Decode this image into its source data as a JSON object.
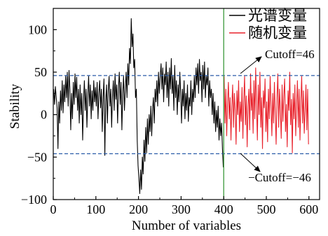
{
  "chart_data": {
    "type": "line",
    "xlabel": "Number of variables",
    "ylabel": "Stability",
    "xlim": [
      0,
      625
    ],
    "ylim": [
      -100,
      125
    ],
    "xticks": [
      0,
      100,
      200,
      300,
      400,
      500,
      600
    ],
    "xtick_labels": [
      "0",
      "100",
      "200",
      "300",
      "400",
      "500",
      "600"
    ],
    "yticks": [
      -100,
      -50,
      0,
      50,
      100
    ],
    "ytick_labels": [
      "−100",
      "−50",
      "0",
      "50",
      "100"
    ],
    "grid": false,
    "legend": "top-right",
    "series": [
      {
        "name": "光谱变量",
        "color": "#000000",
        "x": [
          1,
          3,
          5,
          7,
          9,
          11,
          13,
          15,
          17,
          19,
          21,
          23,
          25,
          27,
          29,
          31,
          33,
          35,
          37,
          39,
          41,
          43,
          45,
          47,
          49,
          51,
          53,
          55,
          57,
          59,
          61,
          63,
          65,
          67,
          69,
          71,
          73,
          75,
          77,
          79,
          81,
          83,
          85,
          87,
          89,
          91,
          93,
          95,
          97,
          99,
          101,
          103,
          105,
          107,
          109,
          111,
          113,
          115,
          117,
          119,
          121,
          123,
          125,
          127,
          129,
          131,
          133,
          135,
          137,
          139,
          141,
          143,
          145,
          147,
          149,
          151,
          153,
          155,
          157,
          159,
          161,
          163,
          165,
          167,
          169,
          171,
          173,
          175,
          177,
          179,
          181,
          183,
          185,
          187,
          189,
          191,
          193,
          195,
          197,
          199,
          201,
          203,
          205,
          207,
          209,
          211,
          213,
          215,
          217,
          219,
          221,
          223,
          225,
          227,
          229,
          231,
          233,
          235,
          237,
          239,
          241,
          243,
          245,
          247,
          249,
          251,
          253,
          255,
          257,
          259,
          261,
          263,
          265,
          267,
          269,
          271,
          273,
          275,
          277,
          279,
          281,
          283,
          285,
          287,
          289,
          291,
          293,
          295,
          297,
          299,
          301,
          303,
          305,
          307,
          309,
          311,
          313,
          315,
          317,
          319,
          321,
          323,
          325,
          327,
          329,
          331,
          333,
          335,
          337,
          339,
          341,
          343,
          345,
          347,
          349,
          351,
          353,
          355,
          357,
          359,
          361,
          363,
          365,
          367,
          369,
          371,
          373,
          375,
          377,
          379,
          381,
          383,
          385,
          387,
          389,
          391,
          393,
          395,
          397,
          399
        ],
        "y": [
          30,
          12,
          33,
          20,
          8,
          -40,
          15,
          -10,
          28,
          5,
          40,
          2,
          35,
          15,
          45,
          20,
          50,
          10,
          52,
          30,
          -18,
          25,
          -5,
          38,
          12,
          48,
          20,
          44,
          5,
          30,
          -10,
          35,
          0,
          25,
          -30,
          15,
          40,
          5,
          30,
          -15,
          22,
          45,
          10,
          35,
          -5,
          28,
          5,
          40,
          15,
          32,
          10,
          38,
          -5,
          25,
          40,
          8,
          30,
          -20,
          20,
          42,
          -48,
          15,
          35,
          -10,
          28,
          45,
          10,
          30,
          -15,
          22,
          40,
          5,
          48,
          18,
          35,
          -10,
          30,
          50,
          12,
          38,
          -18,
          25,
          45,
          5,
          30,
          50,
          20,
          60,
          35,
          78,
          60,
          113,
          80,
          95,
          55,
          65,
          20,
          30,
          -30,
          -60,
          -75,
          -93,
          -65,
          -88,
          -50,
          -70,
          -30,
          -55,
          -15,
          -45,
          -5,
          -35,
          0,
          -20,
          10,
          -25,
          5,
          20,
          -10,
          30,
          15,
          40,
          10,
          50,
          25,
          45,
          60,
          30,
          55,
          15,
          48,
          35,
          62,
          20,
          50,
          10,
          55,
          30,
          66,
          25,
          45,
          5,
          58,
          20,
          40,
          0,
          35,
          15,
          50,
          25,
          -10,
          30,
          10,
          40,
          -5,
          25,
          5,
          35,
          -8,
          20,
          10,
          40,
          0,
          30,
          15,
          45,
          20,
          55,
          35,
          60,
          25,
          65,
          40,
          50,
          15,
          58,
          30,
          62,
          20,
          45,
          35,
          55,
          10,
          40,
          20,
          30,
          0,
          25,
          -10,
          15,
          -20,
          5,
          -15,
          10,
          -30,
          -5,
          -25,
          -10,
          -40,
          -62
        ]
      },
      {
        "name": "随机变量",
        "color": "#e8212b",
        "x": [
          401,
          403,
          405,
          407,
          409,
          411,
          413,
          415,
          417,
          419,
          421,
          423,
          425,
          427,
          429,
          431,
          433,
          435,
          437,
          439,
          441,
          443,
          445,
          447,
          449,
          451,
          453,
          455,
          457,
          459,
          461,
          463,
          465,
          467,
          469,
          471,
          473,
          475,
          477,
          479,
          481,
          483,
          485,
          487,
          489,
          491,
          493,
          495,
          497,
          499,
          501,
          503,
          505,
          507,
          509,
          511,
          513,
          515,
          517,
          519,
          521,
          523,
          525,
          527,
          529,
          531,
          533,
          535,
          537,
          539,
          541,
          543,
          545,
          547,
          549,
          551,
          553,
          555,
          557,
          559,
          561,
          563,
          565,
          567,
          569,
          571,
          573,
          575,
          577,
          579,
          581,
          583,
          585,
          587,
          589,
          591,
          593,
          595,
          597,
          599
        ],
        "y": [
          45,
          -10,
          30,
          -25,
          15,
          38,
          -5,
          20,
          -30,
          10,
          35,
          -15,
          25,
          5,
          -35,
          28,
          0,
          40,
          -20,
          15,
          -8,
          32,
          -28,
          18,
          45,
          -12,
          22,
          -38,
          10,
          30,
          -18,
          48,
          5,
          25,
          -22,
          40,
          -5,
          55,
          12,
          -30,
          35,
          0,
          50,
          -15,
          20,
          -40,
          28,
          8,
          42,
          -20,
          15,
          -32,
          30,
          -5,
          45,
          10,
          -25,
          25,
          -10,
          38,
          0,
          -35,
          20,
          48,
          -15,
          30,
          5,
          -28,
          35,
          -8,
          22,
          42,
          -20,
          12,
          -38,
          28,
          5,
          50,
          -12,
          18,
          -45,
          25,
          -5,
          35,
          -25,
          10,
          40,
          -15,
          30,
          -30,
          15,
          45,
          -10,
          28,
          -22,
          5,
          35,
          -18,
          30,
          -35
        ]
      }
    ],
    "hlines": [
      {
        "y": 46,
        "color": "#2b5ca8",
        "dashed": true
      },
      {
        "y": -46,
        "color": "#2b5ca8",
        "dashed": true
      }
    ],
    "vlines": [
      {
        "x": 400,
        "color": "#3a9a3a",
        "dashed": false
      }
    ],
    "annotations": [
      {
        "text": "Cutoff=46"
      },
      {
        "text": "−Cutoff=−46"
      }
    ]
  }
}
